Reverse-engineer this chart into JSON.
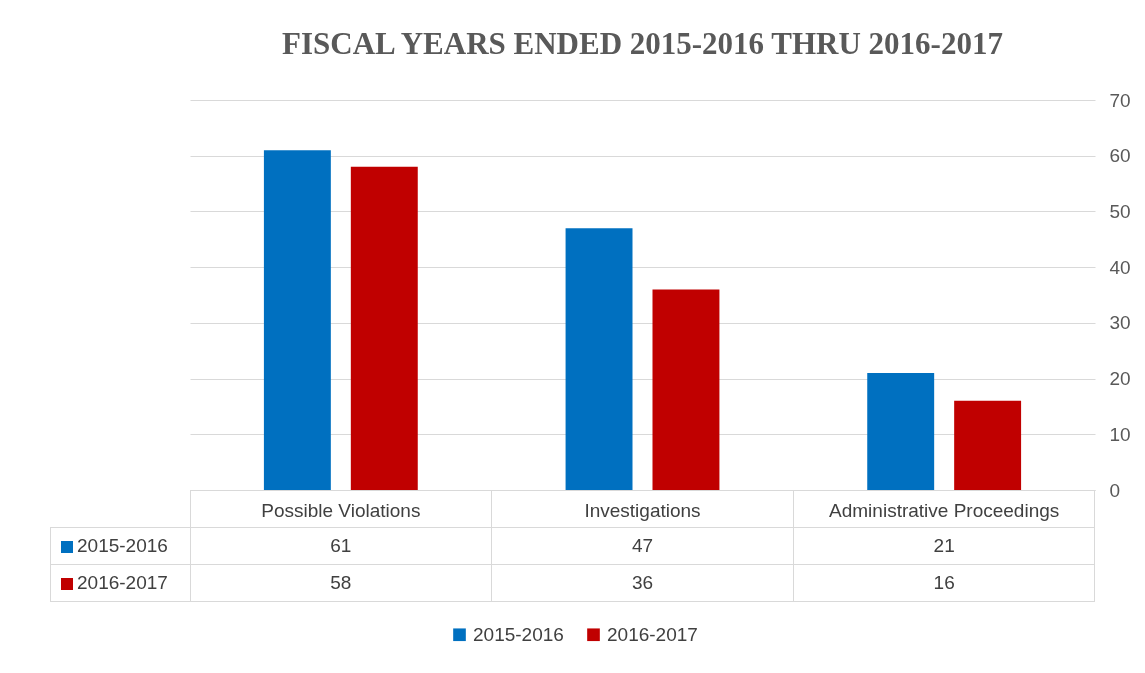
{
  "chart_data": {
    "type": "bar",
    "title": "FISCAL YEARS ENDED 2015-2016 THRU 2016-2017",
    "categories": [
      "Possible Violations",
      "Investigations",
      "Administrative Proceedings"
    ],
    "series": [
      {
        "name": "2015-2016",
        "color": "#0070c0",
        "values": [
          61,
          47,
          21
        ]
      },
      {
        "name": "2016-2017",
        "color": "#c00000",
        "values": [
          58,
          36,
          16
        ]
      }
    ],
    "ylim": [
      0,
      70
    ],
    "yticks": [
      0,
      10,
      20,
      30,
      40,
      50,
      60,
      70
    ],
    "grid": "y",
    "legend": "bottom",
    "data_labels": true
  }
}
